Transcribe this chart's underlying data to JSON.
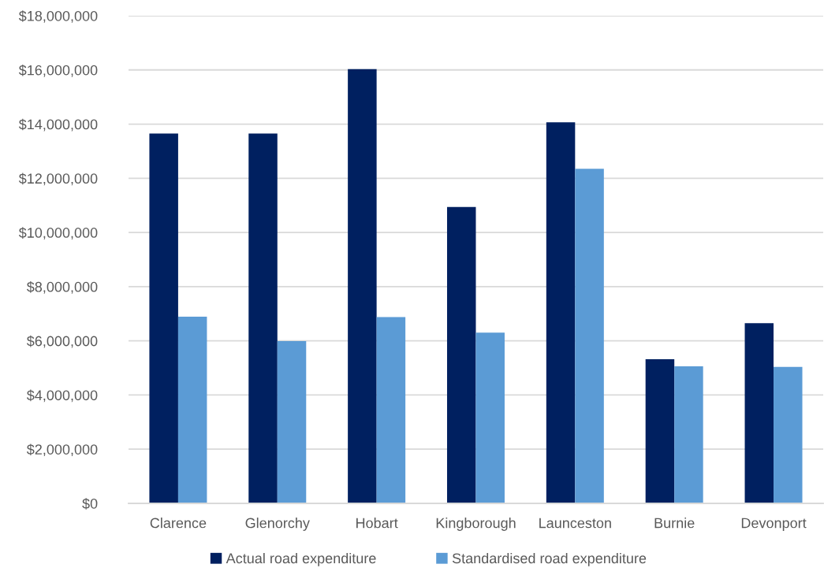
{
  "chart_data": {
    "type": "bar",
    "categories": [
      "Clarence",
      "Glenorchy",
      "Hobart",
      "Kingborough",
      "Launceston",
      "Burnie",
      "Devonport"
    ],
    "series": [
      {
        "name": "Actual road expenditure",
        "color": "#002060",
        "values": [
          13650000,
          13650000,
          16030000,
          10940000,
          14070000,
          5320000,
          6650000
        ]
      },
      {
        "name": "Standardised road expenditure",
        "color": "#5b9bd5",
        "values": [
          6890000,
          5990000,
          6880000,
          6300000,
          12350000,
          5060000,
          5040000
        ]
      }
    ],
    "ylim": [
      0,
      18000000
    ],
    "yticks": [
      {
        "value": 0,
        "label": "$0"
      },
      {
        "value": 2000000,
        "label": "$2,000,000"
      },
      {
        "value": 4000000,
        "label": "$4,000,000"
      },
      {
        "value": 6000000,
        "label": "$6,000,000"
      },
      {
        "value": 8000000,
        "label": "$8,000,000"
      },
      {
        "value": 10000000,
        "label": "$10,000,000"
      },
      {
        "value": 12000000,
        "label": "$12,000,000"
      },
      {
        "value": 14000000,
        "label": "$14,000,000"
      },
      {
        "value": 16000000,
        "label": "$16,000,000"
      },
      {
        "value": 18000000,
        "label": "$18,000,000"
      }
    ],
    "grid": "y",
    "legend": "bottom"
  }
}
